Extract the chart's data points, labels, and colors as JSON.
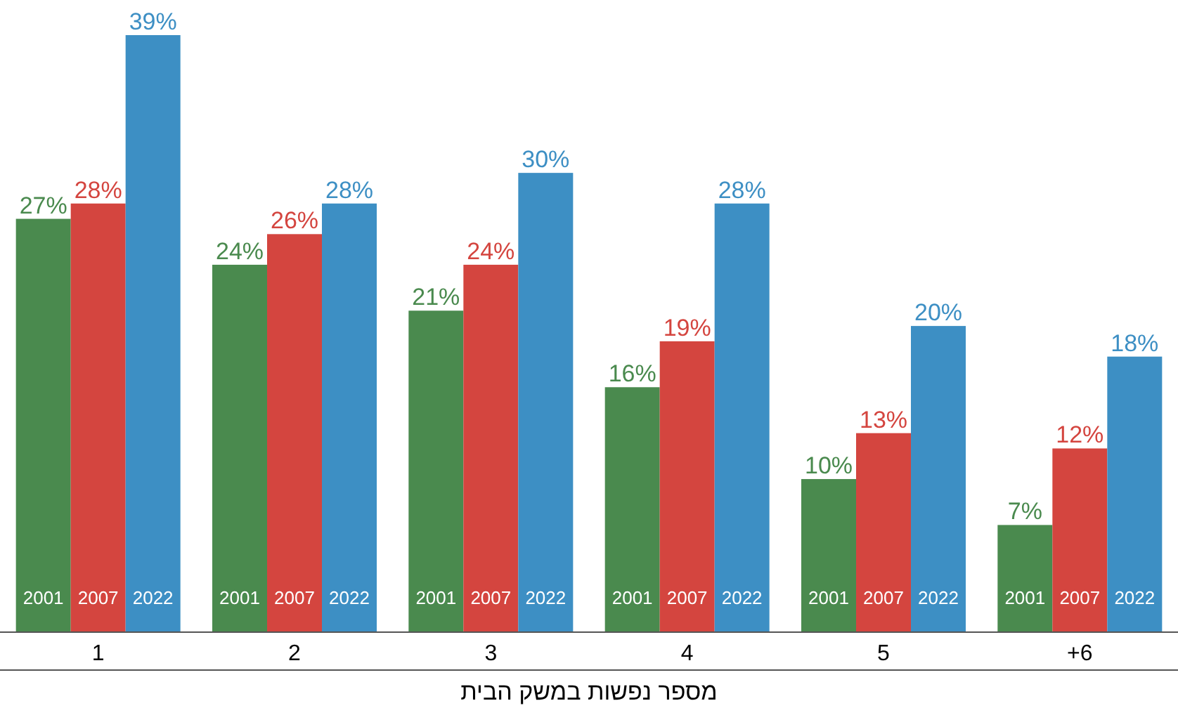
{
  "chart_data": {
    "type": "bar",
    "xlabel": "מספר נפשות במשק הבית",
    "categories": [
      "1",
      "2",
      "3",
      "4",
      "5",
      "6+"
    ],
    "series": [
      {
        "name": "2001",
        "color": "#4a8a4e",
        "values": [
          27,
          24,
          21,
          16,
          10,
          7
        ],
        "value_labels": [
          "27%",
          "24%",
          "21%",
          "16%",
          "10%",
          "7%"
        ]
      },
      {
        "name": "2007",
        "color": "#d4453f",
        "values": [
          28,
          26,
          24,
          19,
          13,
          12
        ],
        "value_labels": [
          "28%",
          "26%",
          "24%",
          "19%",
          "13%",
          "12%"
        ]
      },
      {
        "name": "2022",
        "color": "#3d8fc4",
        "values": [
          39,
          28,
          30,
          28,
          20,
          18
        ],
        "value_labels": [
          "39%",
          "28%",
          "30%",
          "28%",
          "20%",
          "18%"
        ]
      }
    ]
  }
}
